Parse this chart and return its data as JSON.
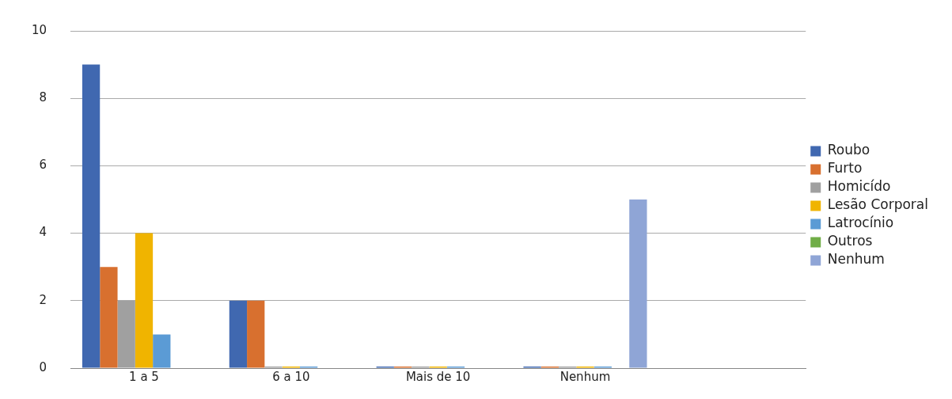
{
  "chart_data": {
    "type": "bar",
    "categories": [
      "1 a 5",
      "6 a 10",
      "Mais de 10",
      "Nenhum",
      null
    ],
    "series": [
      {
        "name": "Roubo",
        "color": "#4068b0",
        "values": [
          9,
          2,
          0,
          0,
          null
        ]
      },
      {
        "name": "Furto",
        "color": "#d8702f",
        "values": [
          3,
          2,
          0,
          0,
          null
        ]
      },
      {
        "name": "Homicído",
        "color": "#a0a0a0",
        "values": [
          2,
          0,
          0,
          0,
          null
        ]
      },
      {
        "name": "Lesão Corporal",
        "color": "#f0b400",
        "values": [
          4,
          0,
          0,
          0,
          null
        ]
      },
      {
        "name": "Latrocínio",
        "color": "#5b9bd5",
        "values": [
          1,
          0,
          0,
          0,
          null
        ]
      },
      {
        "name": "Outros",
        "color": "#70ad47",
        "values": [
          null,
          null,
          null,
          null,
          null
        ]
      },
      {
        "name": "Nenhum",
        "color": "#8fa5d6",
        "values": [
          null,
          null,
          null,
          5,
          null
        ]
      }
    ],
    "ylim": [
      0,
      10
    ],
    "yticks": [
      0,
      2,
      4,
      6,
      8,
      10
    ],
    "grid": "y",
    "legend": "right"
  }
}
